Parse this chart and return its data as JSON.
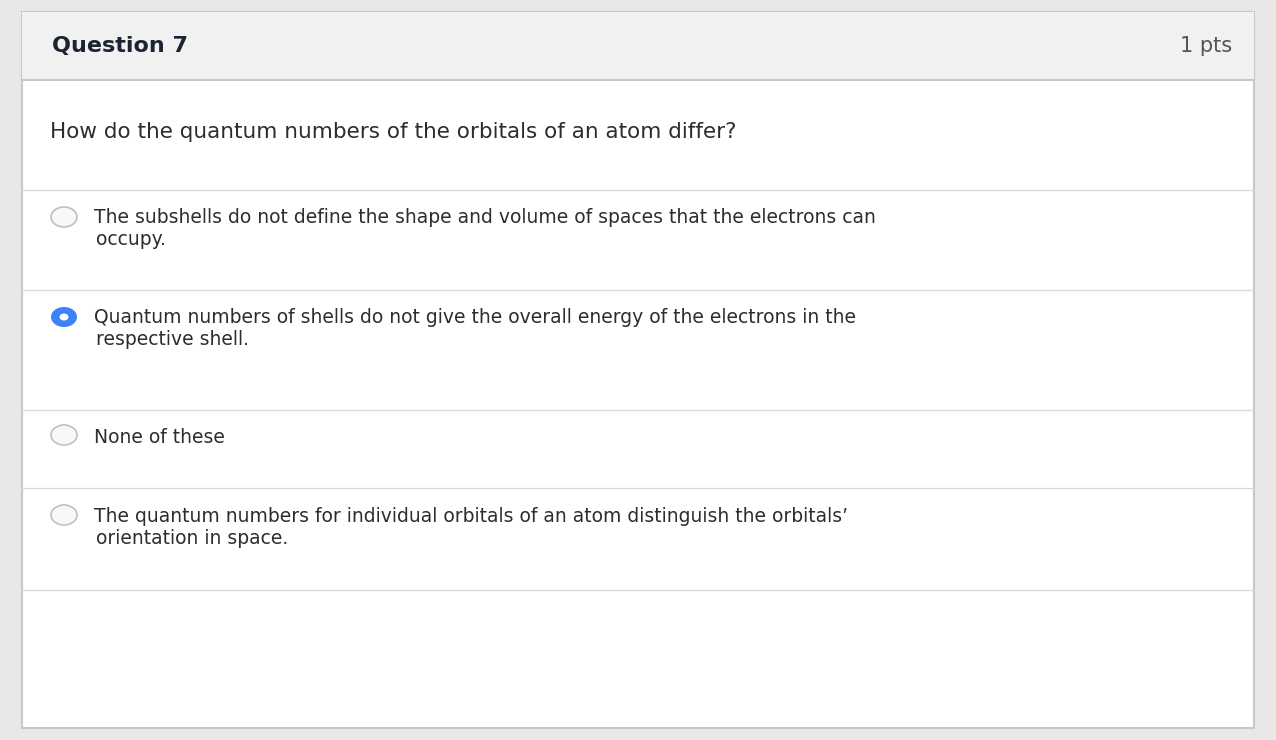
{
  "outer_bg": "#e8e8e8",
  "header_bg": "#f1f1f1",
  "body_bg": "#ffffff",
  "card_border_color": "#c8c8c8",
  "divider_color": "#d8d8d8",
  "header_title": "Question 7",
  "header_pts": "1 pts",
  "header_title_fontsize": 16,
  "header_pts_fontsize": 15,
  "question_text": "How do the quantum numbers of the orbitals of an atom differ?",
  "question_fontsize": 15.5,
  "options": [
    {
      "line1": "The subshells do not define the shape and volume of spaces that the electrons can",
      "line2": "occupy.",
      "selected": false
    },
    {
      "line1": "Quantum numbers of shells do not give the overall energy of the electrons in the",
      "line2": "respective shell.",
      "selected": true
    },
    {
      "line1": "None of these",
      "line2": "",
      "selected": false
    },
    {
      "line1": "The quantum numbers for individual orbitals of an atom distinguish the orbitals’",
      "line2": "orientation in space.",
      "selected": false
    }
  ],
  "option_fontsize": 13.5,
  "radio_unselected_edge": "#c0c0c0",
  "radio_unselected_face": "#f8f8f8",
  "radio_selected_color": "#3b82f6",
  "text_color": "#2d2d2d",
  "header_text_color": "#1c2333",
  "pts_text_color": "#555555",
  "fig_width": 12.76,
  "fig_height": 7.4,
  "dpi": 100
}
